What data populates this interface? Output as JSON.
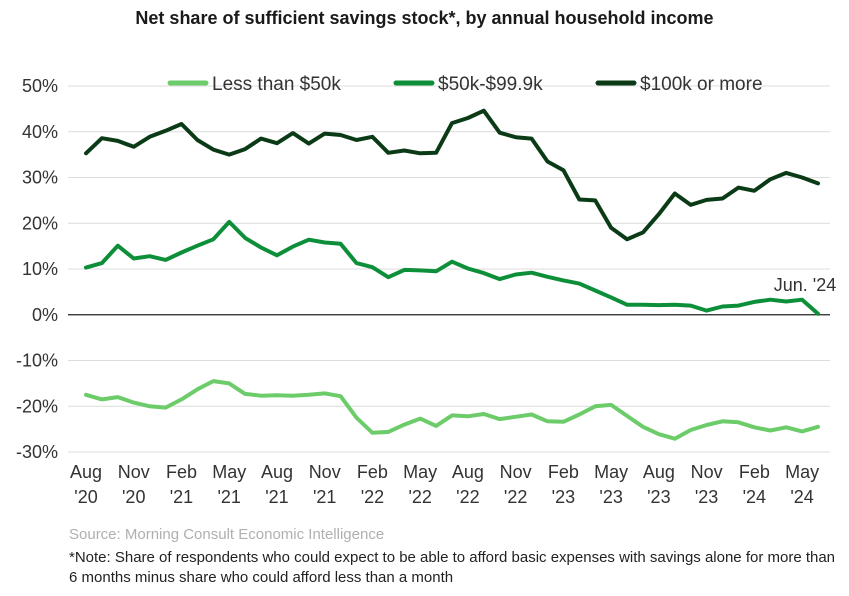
{
  "chart_data": {
    "type": "line",
    "title": "Net share of sufficient savings stock*, by annual household income",
    "xlabel": "",
    "ylabel": "",
    "ylim": [
      -30,
      50
    ],
    "yticks": [
      50,
      40,
      30,
      20,
      10,
      0,
      -10,
      -20,
      -30
    ],
    "ytick_labels": [
      "50%",
      "40%",
      "30%",
      "20%",
      "10%",
      "0%",
      "-10%",
      "-20%",
      "-30%"
    ],
    "xticks": [
      {
        "m": 0,
        "line1": "Aug",
        "line2": "'20"
      },
      {
        "m": 3,
        "line1": "Nov",
        "line2": "'20"
      },
      {
        "m": 6,
        "line1": "Feb",
        "line2": "'21"
      },
      {
        "m": 9,
        "line1": "May",
        "line2": "'21"
      },
      {
        "m": 12,
        "line1": "Aug",
        "line2": "'21"
      },
      {
        "m": 15,
        "line1": "Nov",
        "line2": "'21"
      },
      {
        "m": 18,
        "line1": "Feb",
        "line2": "'22"
      },
      {
        "m": 21,
        "line1": "May",
        "line2": "'22"
      },
      {
        "m": 24,
        "line1": "Aug",
        "line2": "'22"
      },
      {
        "m": 27,
        "line1": "Nov",
        "line2": "'22"
      },
      {
        "m": 30,
        "line1": "Feb",
        "line2": "'23"
      },
      {
        "m": 33,
        "line1": "May",
        "line2": "'23"
      },
      {
        "m": 36,
        "line1": "Aug",
        "line2": "'23"
      },
      {
        "m": 39,
        "line1": "Nov",
        "line2": "'23"
      },
      {
        "m": 42,
        "line1": "Feb",
        "line2": "'24"
      },
      {
        "m": 45,
        "line1": "May",
        "line2": "'24"
      }
    ],
    "x": [
      0,
      1,
      2,
      3,
      4,
      5,
      6,
      7,
      8,
      9,
      10,
      11,
      12,
      13,
      14,
      15,
      16,
      17,
      18,
      19,
      20,
      21,
      22,
      23,
      24,
      25,
      26,
      27,
      28,
      29,
      30,
      31,
      32,
      33,
      34,
      35,
      36,
      37,
      38,
      39,
      40,
      41,
      42,
      43,
      44,
      45,
      46
    ],
    "series": [
      {
        "name": "Less than $50k",
        "color": "#6dcc6a",
        "values": [
          -17.5,
          -18.5,
          -18,
          -19.2,
          -20,
          -20.3,
          -18.5,
          -16.3,
          -14.5,
          -15,
          -17.3,
          -17.7,
          -17.6,
          -17.7,
          -17.5,
          -17.2,
          -17.8,
          -22.5,
          -25.8,
          -25.6,
          -24,
          -22.7,
          -24.3,
          -22,
          -22.2,
          -21.7,
          -22.8,
          -22.3,
          -21.8,
          -23.3,
          -23.4,
          -21.8,
          -20,
          -19.7,
          -22.1,
          -24.5,
          -26.1,
          -27.1,
          -25.2,
          -24.1,
          -23.3,
          -23.5,
          -24.6,
          -25.3,
          -24.6,
          -25.5,
          -24.5
        ]
      },
      {
        "name": "$50k-$99.9k",
        "color": "#0d8f3a",
        "values": [
          10.3,
          11.3,
          15.1,
          12.3,
          12.8,
          12,
          13.6,
          15.1,
          16.5,
          20.3,
          16.8,
          14.7,
          13,
          14.9,
          16.4,
          15.8,
          15.5,
          11.3,
          10.4,
          8.2,
          9.8,
          9.7,
          9.5,
          11.6,
          10.1,
          9.1,
          7.8,
          8.8,
          9.2,
          8.3,
          7.5,
          6.8,
          5.3,
          3.8,
          2.2,
          2.2,
          2.1,
          2.2,
          2,
          0.9,
          1.8,
          2,
          2.8,
          3.3,
          2.9,
          3.3,
          0.2
        ]
      },
      {
        "name": "$100k or more",
        "color": "#0b3b16",
        "values": [
          35.3,
          38.6,
          38,
          36.7,
          38.9,
          40.2,
          41.7,
          38.2,
          36.1,
          35,
          36.2,
          38.5,
          37.5,
          39.7,
          37.4,
          39.6,
          39.3,
          38.2,
          38.9,
          35.4,
          35.9,
          35.3,
          35.4,
          41.9,
          43,
          44.6,
          39.8,
          38.8,
          38.5,
          33.5,
          31.6,
          25.2,
          25,
          19,
          16.5,
          18,
          22,
          26.5,
          24,
          25.1,
          25.4,
          27.8,
          27.1,
          29.6,
          31,
          30,
          28.7
        ]
      }
    ],
    "legend_position": "top",
    "annotation": "Jun. '24",
    "grid": true
  },
  "footer": {
    "source": "Source: Morning Consult Economic Intelligence",
    "note": "*Note: Share of respondents who could expect to be able to afford basic expenses with savings alone for more than 6 months minus share who could afford less than a month"
  }
}
